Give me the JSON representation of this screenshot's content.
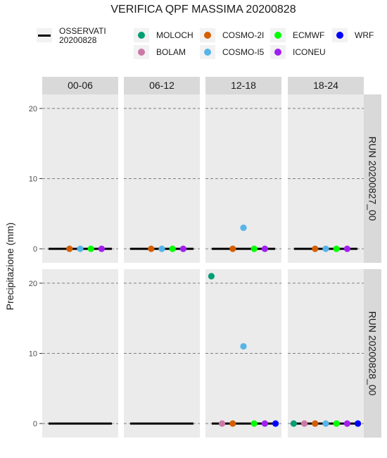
{
  "chart_data": {
    "type": "scatter",
    "title": "VERIFICA QPF MASSIMA 20200828",
    "ylabel": "Precipitazione (mm)",
    "ylim": [
      -2,
      22
    ],
    "yticks": [
      0,
      10,
      20
    ],
    "grid": true,
    "legend_position": "top",
    "observed_label": "OSSERVATI 20200828",
    "columns": [
      "00-06",
      "06-12",
      "12-18",
      "18-24"
    ],
    "rows": [
      "RUN 20200827_00",
      "RUN 20200828_00"
    ],
    "models": [
      {
        "name": "MOLOCH",
        "color": "#009e73"
      },
      {
        "name": "BOLAM",
        "color": "#cc79a7"
      },
      {
        "name": "COSMO-2I",
        "color": "#d55e00"
      },
      {
        "name": "COSMO-I5",
        "color": "#56b4e9"
      },
      {
        "name": "ECMWF",
        "color": "#00ff00"
      },
      {
        "name": "ICONEU",
        "color": "#a020f0"
      },
      {
        "name": "WRF",
        "color": "#0000ff"
      }
    ],
    "panels": [
      {
        "row": 0,
        "col": 0,
        "observed": 0,
        "points": {
          "COSMO-2I": 0,
          "COSMO-I5": 0,
          "ECMWF": 0,
          "ICONEU": 0
        }
      },
      {
        "row": 0,
        "col": 1,
        "observed": 0,
        "points": {
          "COSMO-2I": 0,
          "COSMO-I5": 0,
          "ECMWF": 0,
          "ICONEU": 0
        }
      },
      {
        "row": 0,
        "col": 2,
        "observed": 0,
        "points": {
          "COSMO-2I": 0,
          "COSMO-I5": 3,
          "ECMWF": 0,
          "ICONEU": 0
        }
      },
      {
        "row": 0,
        "col": 3,
        "observed": 0,
        "points": {
          "COSMO-2I": 0,
          "COSMO-I5": 0,
          "ECMWF": 0,
          "ICONEU": 0
        }
      },
      {
        "row": 1,
        "col": 0,
        "observed": 0,
        "points": {}
      },
      {
        "row": 1,
        "col": 1,
        "observed": 0,
        "points": {}
      },
      {
        "row": 1,
        "col": 2,
        "observed": 0,
        "points": {
          "MOLOCH": 21,
          "BOLAM": 0,
          "COSMO-2I": 0,
          "COSMO-I5": 11,
          "ECMWF": 0,
          "ICONEU": 0,
          "WRF": 0
        }
      },
      {
        "row": 1,
        "col": 3,
        "observed": 0,
        "points": {
          "MOLOCH": 0,
          "BOLAM": 0,
          "COSMO-2I": 0,
          "COSMO-I5": 0,
          "ECMWF": 0,
          "ICONEU": 0,
          "WRF": 0
        }
      }
    ]
  }
}
